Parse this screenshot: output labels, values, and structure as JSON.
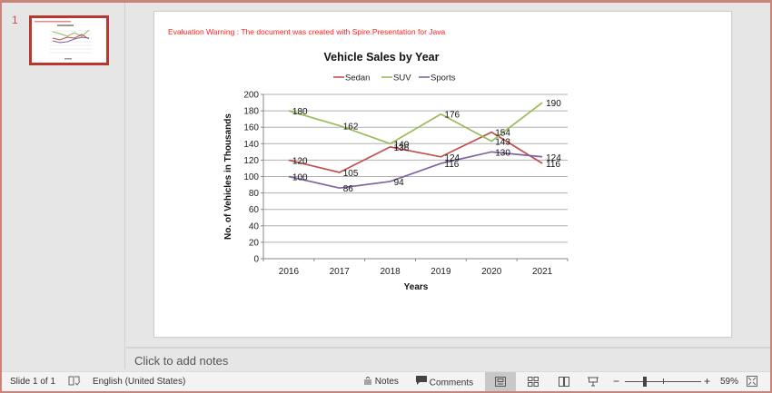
{
  "thumbnail_pane": {
    "slides": [
      {
        "number": "1",
        "selected": true
      }
    ]
  },
  "slide": {
    "warning_text": "Evaluation Warning : The document was created with  Spire.Presentation for Java",
    "warning_color": "#ff2020"
  },
  "notes": {
    "placeholder": "Click to add notes"
  },
  "status_bar": {
    "slide_indicator": "Slide 1 of 1",
    "spell_check_icon": "spell-check-icon",
    "language": "English (United States)",
    "notes_label": "Notes",
    "comments_label": "Comments",
    "views": [
      "normal-view",
      "slide-sorter-view",
      "reading-view",
      "slideshow-view"
    ],
    "active_view": "normal-view",
    "zoom_minus": "−",
    "zoom_plus": "+",
    "zoom_level": "59%",
    "fit_icon": "fit-to-window-icon"
  },
  "chart_data": {
    "type": "line",
    "title": "Vehicle Sales by Year",
    "xlabel": "Years",
    "ylabel": "No. of Vehicles in Thousands",
    "categories": [
      "2016",
      "2017",
      "2018",
      "2019",
      "2020",
      "2021"
    ],
    "series": [
      {
        "name": "Sedan",
        "color": "#c0504d",
        "values": [
          120,
          105,
          136,
          124,
          154,
          116
        ],
        "labels": [
          "120",
          "105",
          "136",
          "124",
          "154",
          "116"
        ]
      },
      {
        "name": "SUV",
        "color": "#9bbb59",
        "values": [
          180,
          162,
          140,
          176,
          143,
          190
        ],
        "labels": [
          "180",
          "162",
          "140",
          "176",
          "143",
          "190"
        ]
      },
      {
        "name": "Sports",
        "color": "#8064a2",
        "values": [
          100,
          86,
          94,
          116,
          130,
          124
        ],
        "labels": [
          "100",
          "86",
          "94",
          "116",
          "130",
          "124"
        ]
      }
    ],
    "ylim": [
      0,
      200
    ],
    "yticks": [
      "0",
      "20",
      "40",
      "60",
      "80",
      "100",
      "120",
      "140",
      "160",
      "180",
      "200"
    ],
    "grid": true,
    "legend_position": "top"
  }
}
